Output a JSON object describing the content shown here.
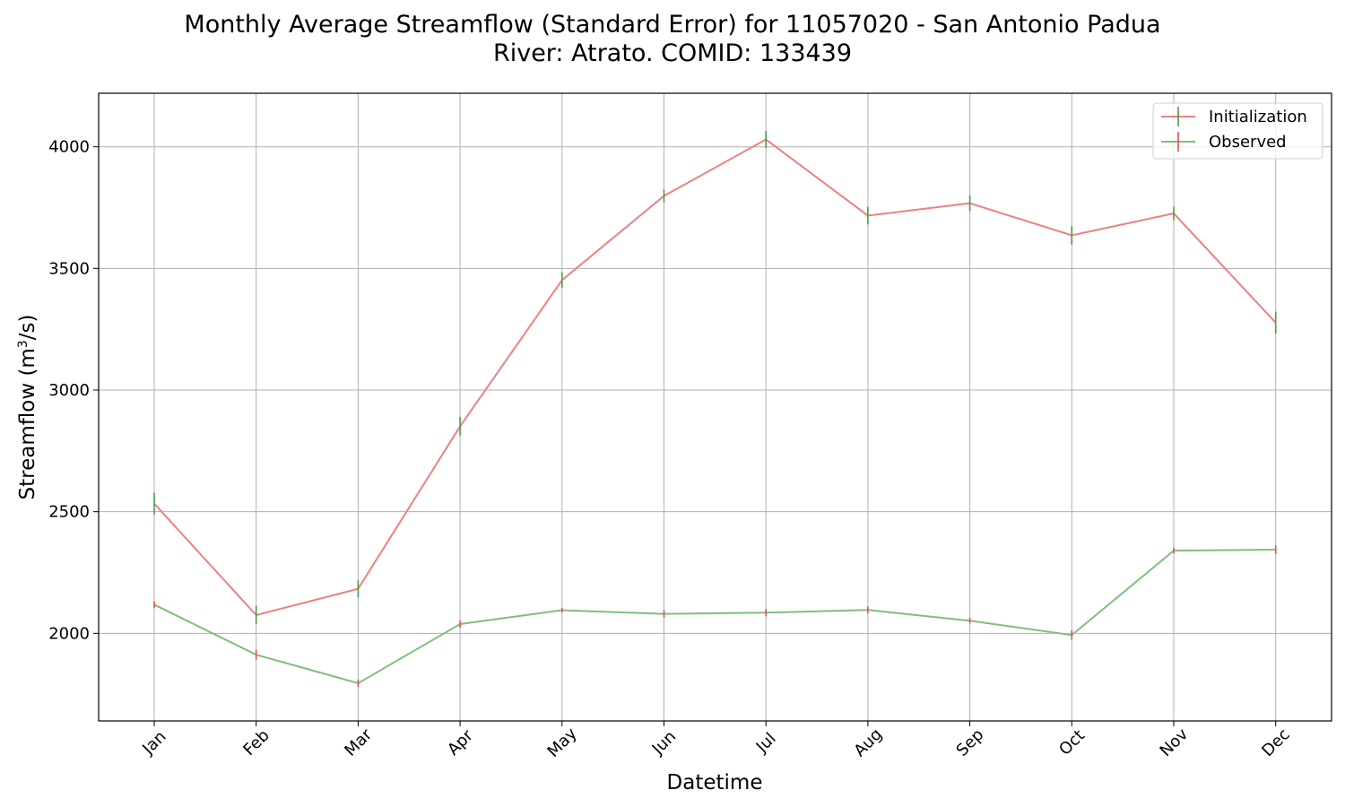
{
  "chart_data": {
    "type": "line",
    "title_line1": "Monthly Average Streamflow (Standard Error) for 11057020 - San Antonio Padua",
    "title_line2": "River: Atrato. COMID: 133439",
    "xlabel": "Datetime",
    "ylabel_main": "Streamflow (m",
    "ylabel_sup": "3",
    "ylabel_tail": "/s)",
    "categories": [
      "Jan",
      "Feb",
      "Mar",
      "Apr",
      "May",
      "Jun",
      "Jul",
      "Aug",
      "Sep",
      "Oct",
      "Nov",
      "Dec"
    ],
    "ylim": [
      1640,
      4220
    ],
    "yticks": [
      2000,
      2500,
      3000,
      3500,
      4000
    ],
    "grid": true,
    "legend_position": "top-right",
    "series": [
      {
        "name": "Initialization",
        "line_color": "#f08080",
        "errorbar_color": "#4a9a4a",
        "values": [
          2533,
          2075,
          2183,
          2851,
          3452,
          3798,
          4030,
          3717,
          3768,
          3636,
          3726,
          3277
        ],
        "errors": [
          45,
          38,
          35,
          38,
          33,
          26,
          35,
          36,
          32,
          38,
          28,
          45
        ]
      },
      {
        "name": "Observed",
        "line_color": "#7fbf7f",
        "errorbar_color": "#e05050",
        "values": [
          2118,
          1912,
          1795,
          2038,
          2095,
          2080,
          2085,
          2096,
          2052,
          1993,
          2340,
          2344
        ],
        "errors": [
          14,
          20,
          16,
          15,
          10,
          15,
          15,
          14,
          12,
          20,
          12,
          17
        ]
      }
    ]
  }
}
